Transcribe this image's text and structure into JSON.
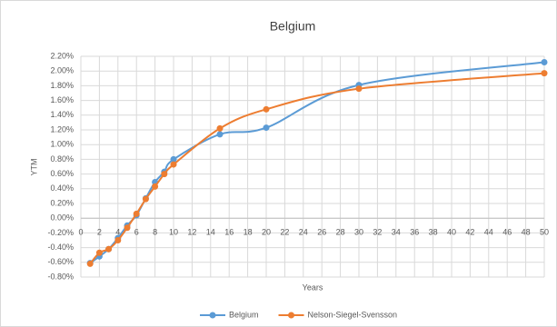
{
  "chart_data": {
    "type": "line",
    "title": "Belgium",
    "x_label": "Years",
    "y_label": "YTM",
    "x": [
      1,
      2,
      3,
      4,
      5,
      6,
      7,
      8,
      9,
      10,
      15,
      20,
      30,
      50
    ],
    "series": [
      {
        "name": "Belgium",
        "color": "#5b9bd5",
        "values": [
          -0.61,
          -0.52,
          -0.42,
          -0.27,
          -0.1,
          0.04,
          0.27,
          0.49,
          0.63,
          0.8,
          1.14,
          1.23,
          1.81,
          2.12
        ]
      },
      {
        "name": "Nelson-Siegel-Svensson",
        "color": "#ed7d31",
        "values": [
          -0.62,
          -0.47,
          -0.42,
          -0.3,
          -0.13,
          0.06,
          0.26,
          0.43,
          0.6,
          0.73,
          1.22,
          1.48,
          1.76,
          1.97
        ]
      }
    ],
    "xlim": [
      0,
      50
    ],
    "xticks": [
      0,
      2,
      4,
      6,
      8,
      10,
      12,
      14,
      16,
      18,
      20,
      22,
      24,
      26,
      28,
      30,
      32,
      34,
      36,
      38,
      40,
      42,
      44,
      46,
      48,
      50
    ],
    "ylim": [
      -0.8,
      2.2
    ],
    "yticks": [
      {
        "value": -0.8,
        "label": "-0.80%"
      },
      {
        "value": -0.6,
        "label": "-0.60%"
      },
      {
        "value": -0.4,
        "label": "-0.40%"
      },
      {
        "value": -0.2,
        "label": "-0.20%"
      },
      {
        "value": 0,
        "label": "0.00%"
      },
      {
        "value": 0.2,
        "label": "0.20%"
      },
      {
        "value": 0.4,
        "label": "0.40%"
      },
      {
        "value": 0.6,
        "label": "0.60%"
      },
      {
        "value": 0.8,
        "label": "0.80%"
      },
      {
        "value": 1.0,
        "label": "1.00%"
      },
      {
        "value": 1.2,
        "label": "1.20%"
      },
      {
        "value": 1.4,
        "label": "1.40%"
      },
      {
        "value": 1.6,
        "label": "1.60%"
      },
      {
        "value": 1.8,
        "label": "1.80%"
      },
      {
        "value": 2.0,
        "label": "2.00%"
      },
      {
        "value": 2.2,
        "label": "2.20%"
      }
    ],
    "grid": true,
    "smooth": true,
    "legend": "bottom"
  }
}
